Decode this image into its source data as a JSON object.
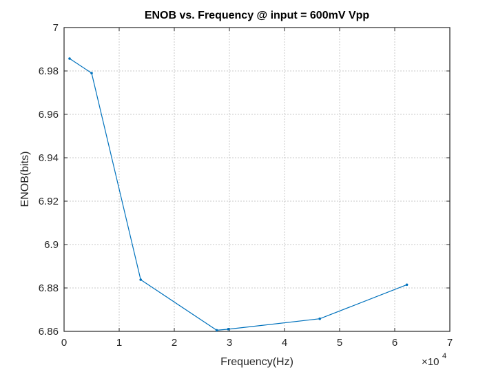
{
  "chart_data": {
    "type": "line",
    "title": "ENOB vs. Frequency @ input = 600mV Vpp",
    "xlabel": "Frequency(Hz)",
    "ylabel": "ENOB(bits)",
    "x_multiplier_label": "×10^4",
    "x_exponent": "4",
    "xlim": [
      0,
      70000
    ],
    "ylim": [
      6.86,
      7.0
    ],
    "xticks": [
      0,
      1,
      2,
      3,
      4,
      5,
      6,
      7
    ],
    "xtick_labels": [
      "0",
      "1",
      "2",
      "3",
      "4",
      "5",
      "6",
      "7"
    ],
    "yticks": [
      6.86,
      6.88,
      6.9,
      6.92,
      6.94,
      6.96,
      6.98,
      7.0
    ],
    "ytick_labels": [
      "6.86",
      "6.88",
      "6.9",
      "6.92",
      "6.94",
      "6.96",
      "6.98",
      "7"
    ],
    "grid": true,
    "legend": null,
    "series": [
      {
        "name": "ENOB",
        "color": "#0072BD",
        "x": [
          1000,
          5000,
          13900,
          27700,
          29800,
          46400,
          62200
        ],
        "y": [
          6.9857,
          6.979,
          6.8838,
          6.8605,
          6.861,
          6.8658,
          6.8815
        ]
      }
    ]
  },
  "colors": {
    "line": "#0072BD",
    "axis": "#262626",
    "grid": "#c8c8c8",
    "background": "#ffffff"
  }
}
